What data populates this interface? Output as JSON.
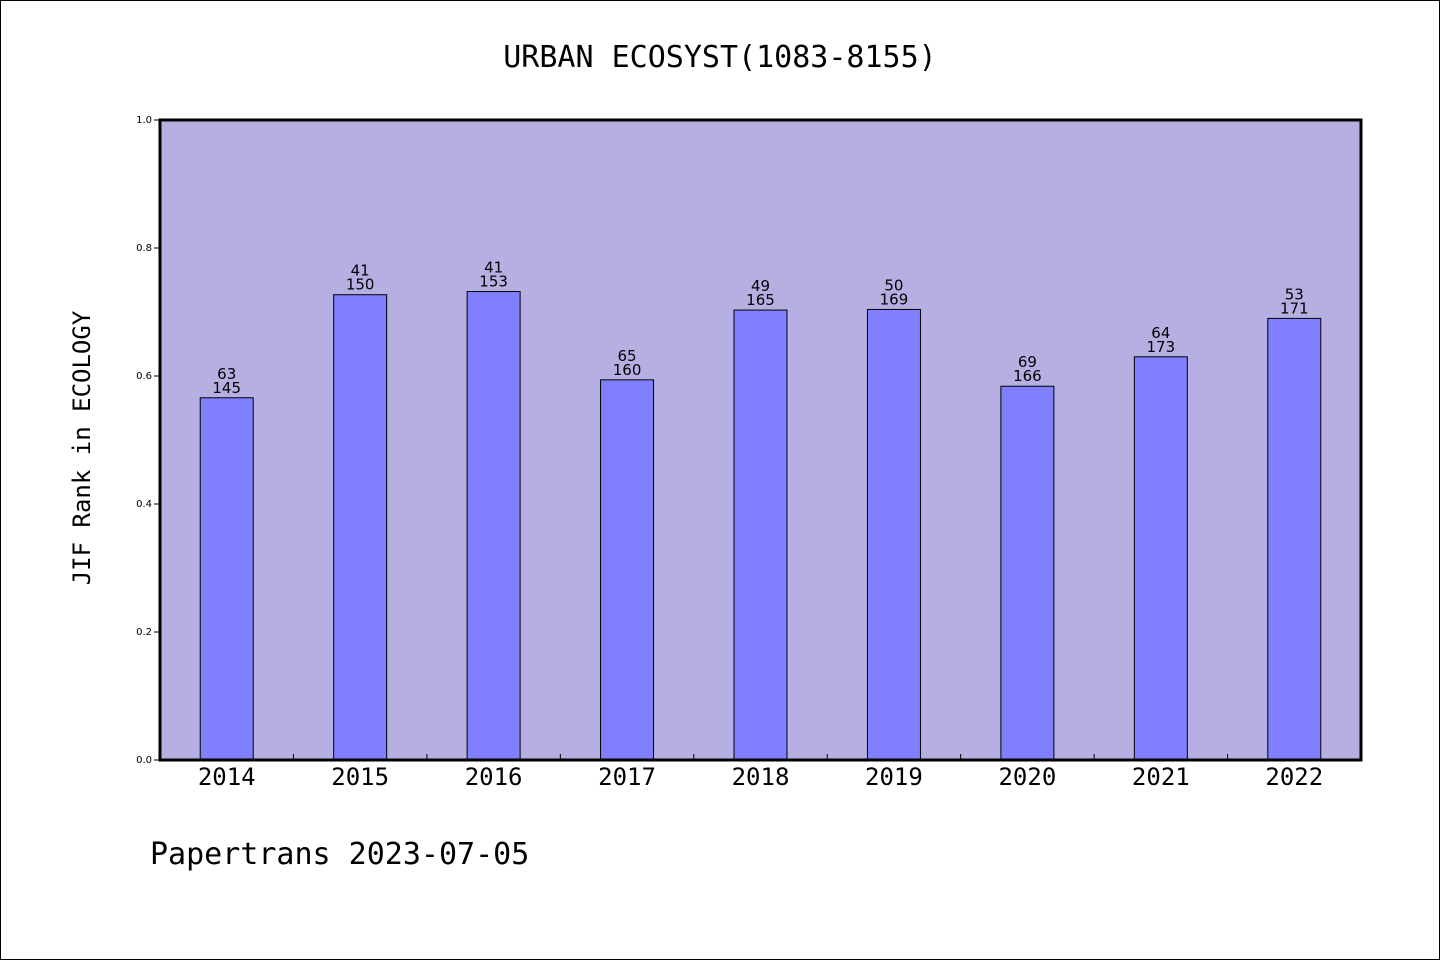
{
  "chart_data": {
    "type": "bar",
    "title": "URBAN ECOSYST(1083-8155)",
    "xlabel": "",
    "ylabel": "JIF Rank in ECOLOGY",
    "ylim": [
      0,
      1.0
    ],
    "yticks": [
      "0.0",
      "0.2",
      "0.4",
      "0.6",
      "0.8",
      "1.0"
    ],
    "grid": false,
    "categories": [
      "2014",
      "2015",
      "2016",
      "2017",
      "2018",
      "2019",
      "2020",
      "2021",
      "2022"
    ],
    "values": [
      0.566,
      0.727,
      0.732,
      0.594,
      0.703,
      0.704,
      0.584,
      0.63,
      0.69
    ],
    "rank_labels": [
      "63",
      "41",
      "41",
      "65",
      "49",
      "50",
      "69",
      "64",
      "53"
    ],
    "total_labels": [
      "145",
      "150",
      "153",
      "160",
      "165",
      "169",
      "166",
      "173",
      "171"
    ],
    "colors": {
      "plot_background": "#b6b0e2",
      "bar_fill": "#8080ff",
      "bar_stroke": "#000000"
    }
  },
  "footer": {
    "text": "Papertrans 2023-07-05"
  }
}
